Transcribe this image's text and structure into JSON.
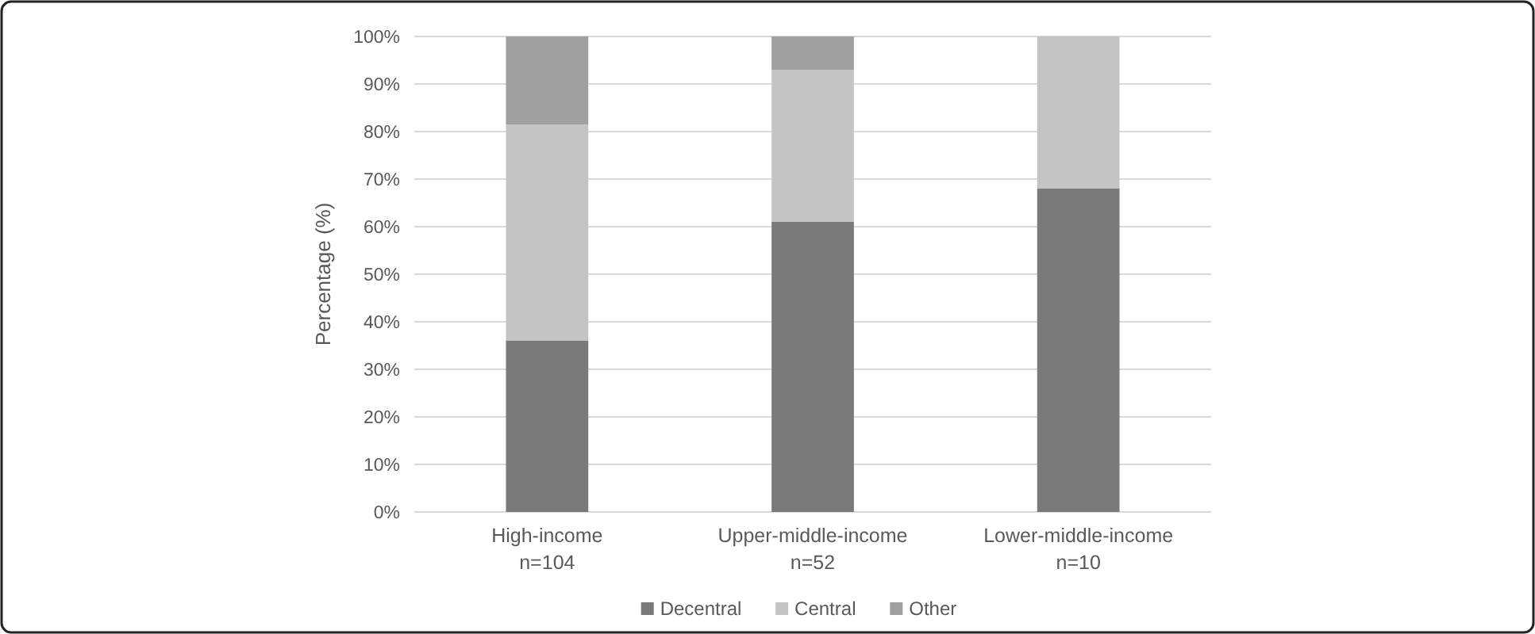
{
  "chart_data": {
    "type": "bar",
    "stacked": true,
    "ylabel": "Percentage (%)",
    "categories": [
      "High-income\nn=104",
      "Upper-middle-income\nn=52",
      "Lower-middle-income\nn=10"
    ],
    "series": [
      {
        "name": "Decentral",
        "color": "#7a7a7a",
        "values": [
          36,
          61,
          68
        ]
      },
      {
        "name": "Central",
        "color": "#c4c4c4",
        "values": [
          45.5,
          32,
          32
        ]
      },
      {
        "name": "Other",
        "color": "#a0a0a0",
        "values": [
          18.5,
          7,
          0
        ]
      }
    ],
    "ylim": [
      0,
      100
    ],
    "yticks": [
      {
        "value": 0,
        "label": "0%"
      },
      {
        "value": 10,
        "label": "10%"
      },
      {
        "value": 20,
        "label": "20%"
      },
      {
        "value": 30,
        "label": "30%"
      },
      {
        "value": 40,
        "label": "40%"
      },
      {
        "value": 50,
        "label": "50%"
      },
      {
        "value": 60,
        "label": "60%"
      },
      {
        "value": 70,
        "label": "70%"
      },
      {
        "value": 80,
        "label": "80%"
      },
      {
        "value": 90,
        "label": "90%"
      },
      {
        "value": 100,
        "label": "100%"
      }
    ],
    "grid": "y",
    "legend": "bottom"
  }
}
